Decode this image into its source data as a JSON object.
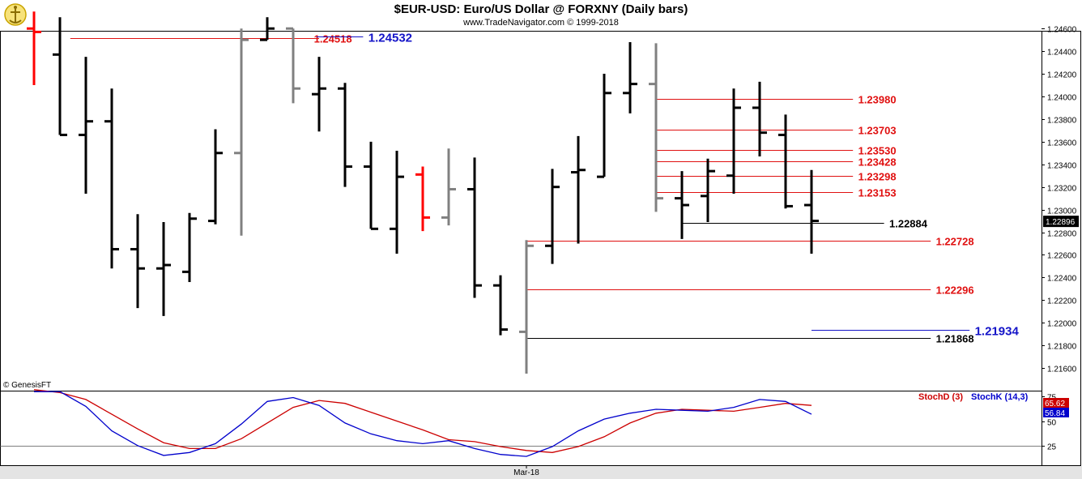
{
  "header": {
    "title": "$EUR-USD:  Euro/US Dollar @ FORXNY  (Daily bars)",
    "subtitle": "www.TradeNavigator.com © 1999-2018",
    "logo_icon": "tradenavigator-logo-icon"
  },
  "copyright": "© GenesisFT",
  "colors": {
    "up_bar": "#000000",
    "down_bar": "#ff0000",
    "gray_bar": "#808080",
    "red_level": "#e01010",
    "blue_level": "#1414c8",
    "black_level": "#000000",
    "stoch_d": "#cc0000",
    "stoch_k": "#0000cc"
  },
  "chart_data": [
    {
      "type": "ohlc",
      "title": "$EUR-USD:  Euro/US Dollar @ FORXNY  (Daily bars)",
      "ylim": [
        1.214,
        1.2458
      ],
      "ytick_labels": [
        "1.24600",
        "1.24400",
        "1.24200",
        "1.24000",
        "1.23800",
        "1.23600",
        "1.23400",
        "1.23200",
        "1.23000",
        "1.22800",
        "1.22600",
        "1.22400",
        "1.22200",
        "1.22000",
        "1.21800",
        "1.21600"
      ],
      "ytick_values": [
        1.246,
        1.244,
        1.242,
        1.24,
        1.238,
        1.236,
        1.234,
        1.232,
        1.23,
        1.228,
        1.226,
        1.224,
        1.222,
        1.22,
        1.218,
        1.216
      ],
      "xtick_label": "Mar-18",
      "last_price": "1.22896",
      "bars": [
        {
          "o": 1.246,
          "h": 1.2475,
          "l": 1.241,
          "c": 1.2457,
          "color": "red"
        },
        {
          "o": 1.2437,
          "h": 1.247,
          "l": 1.2366,
          "c": 1.2366,
          "color": "black"
        },
        {
          "o": 1.2366,
          "h": 1.2435,
          "l": 1.2314,
          "c": 1.2378,
          "color": "black"
        },
        {
          "o": 1.2378,
          "h": 1.2407,
          "l": 1.2248,
          "c": 1.2265,
          "color": "black"
        },
        {
          "o": 1.2265,
          "h": 1.2296,
          "l": 1.2213,
          "c": 1.2248,
          "color": "black"
        },
        {
          "o": 1.2248,
          "h": 1.2289,
          "l": 1.2206,
          "c": 1.2251,
          "color": "black"
        },
        {
          "o": 1.2245,
          "h": 1.2297,
          "l": 1.2236,
          "c": 1.2292,
          "color": "black"
        },
        {
          "o": 1.229,
          "h": 1.2371,
          "l": 1.2287,
          "c": 1.235,
          "color": "black"
        },
        {
          "o": 1.235,
          "h": 1.246,
          "l": 1.2277,
          "c": 1.245,
          "color": "gray"
        },
        {
          "o": 1.245,
          "h": 1.247,
          "l": 1.245,
          "c": 1.246,
          "color": "black"
        },
        {
          "o": 1.246,
          "h": 1.246,
          "l": 1.2394,
          "c": 1.2407,
          "color": "gray"
        },
        {
          "o": 1.2402,
          "h": 1.2435,
          "l": 1.2369,
          "c": 1.2407,
          "color": "black"
        },
        {
          "o": 1.2407,
          "h": 1.2412,
          "l": 1.232,
          "c": 1.2338,
          "color": "black"
        },
        {
          "o": 1.2338,
          "h": 1.236,
          "l": 1.2283,
          "c": 1.2283,
          "color": "black"
        },
        {
          "o": 1.2283,
          "h": 1.2352,
          "l": 1.2261,
          "c": 1.2329,
          "color": "black"
        },
        {
          "o": 1.2331,
          "h": 1.2338,
          "l": 1.2281,
          "c": 1.2293,
          "color": "red"
        },
        {
          "o": 1.2293,
          "h": 1.2354,
          "l": 1.2286,
          "c": 1.2318,
          "color": "gray"
        },
        {
          "o": 1.2318,
          "h": 1.2346,
          "l": 1.2222,
          "c": 1.2233,
          "color": "black"
        },
        {
          "o": 1.2233,
          "h": 1.2242,
          "l": 1.2189,
          "c": 1.2194,
          "color": "black"
        },
        {
          "o": 1.2192,
          "h": 1.2273,
          "l": 1.2155,
          "c": 1.2268,
          "color": "gray"
        },
        {
          "o": 1.2268,
          "h": 1.2336,
          "l": 1.2252,
          "c": 1.232,
          "color": "black"
        },
        {
          "o": 1.2333,
          "h": 1.2365,
          "l": 1.227,
          "c": 1.2335,
          "color": "black"
        },
        {
          "o": 1.2329,
          "h": 1.242,
          "l": 1.2329,
          "c": 1.2403,
          "color": "black"
        },
        {
          "o": 1.2403,
          "h": 1.2448,
          "l": 1.2385,
          "c": 1.2411,
          "color": "black"
        },
        {
          "o": 1.2411,
          "h": 1.2447,
          "l": 1.2298,
          "c": 1.231,
          "color": "gray"
        },
        {
          "o": 1.231,
          "h": 1.2334,
          "l": 1.2274,
          "c": 1.2304,
          "color": "black"
        },
        {
          "o": 1.2312,
          "h": 1.2345,
          "l": 1.2289,
          "c": 1.2334,
          "color": "black"
        },
        {
          "o": 1.233,
          "h": 1.2407,
          "l": 1.2314,
          "c": 1.239,
          "color": "black"
        },
        {
          "o": 1.239,
          "h": 1.2413,
          "l": 1.2347,
          "c": 1.2368,
          "color": "black"
        },
        {
          "o": 1.2366,
          "h": 1.2384,
          "l": 1.2301,
          "c": 1.2303,
          "color": "black"
        },
        {
          "o": 1.2304,
          "h": 1.2335,
          "l": 1.2261,
          "c": 1.229,
          "color": "black"
        }
      ],
      "levels": [
        {
          "value": 1.24518,
          "label": "1.24518",
          "color": "red",
          "x_start": 1.4,
          "x_end": 11.0,
          "label_x": 10.8
        },
        {
          "value": 1.24532,
          "label": "1.24532",
          "color": "blue",
          "x_start": 10.9,
          "x_end": 12.7,
          "label_x": 12.9
        },
        {
          "value": 1.2398,
          "label": "1.23980",
          "color": "red",
          "x_start": 24.0,
          "x_end": 31.6,
          "label_x": 31.8
        },
        {
          "value": 1.23703,
          "label": "1.23703",
          "color": "red",
          "x_start": 24.0,
          "x_end": 31.6,
          "label_x": 31.8
        },
        {
          "value": 1.2353,
          "label": "1.23530",
          "color": "red",
          "x_start": 24.0,
          "x_end": 31.6,
          "label_x": 31.8
        },
        {
          "value": 1.23428,
          "label": "1.23428",
          "color": "red",
          "x_start": 24.0,
          "x_end": 31.6,
          "label_x": 31.8
        },
        {
          "value": 1.23298,
          "label": "1.23298",
          "color": "red",
          "x_start": 24.0,
          "x_end": 31.6,
          "label_x": 31.8
        },
        {
          "value": 1.23153,
          "label": "1.23153",
          "color": "red",
          "x_start": 24.0,
          "x_end": 31.6,
          "label_x": 31.8
        },
        {
          "value": 1.22884,
          "label": "1.22884",
          "color": "black",
          "x_start": 25.0,
          "x_end": 32.8,
          "label_x": 33.0
        },
        {
          "value": 1.22728,
          "label": "1.22728",
          "color": "red",
          "x_start": 19.0,
          "x_end": 34.6,
          "label_x": 34.8
        },
        {
          "value": 1.22296,
          "label": "1.22296",
          "color": "red",
          "x_start": 19.0,
          "x_end": 34.6,
          "label_x": 34.8
        },
        {
          "value": 1.21934,
          "label": "1.21934",
          "color": "blue",
          "x_start": 30.0,
          "x_end": 36.1,
          "label_x": 36.3
        },
        {
          "value": 1.21868,
          "label": "1.21868",
          "color": "black",
          "x_start": 19.0,
          "x_end": 34.6,
          "label_x": 34.8
        }
      ]
    },
    {
      "type": "line",
      "title": "Stochastics",
      "ylim": [
        5,
        81
      ],
      "ytick_labels": [
        "75",
        "25",
        "50"
      ],
      "ytick_values": [
        75,
        25,
        50
      ],
      "legend": [
        "StochD (3)",
        "StochK (14,3)"
      ],
      "readouts": [
        {
          "label": "65.62",
          "color": "red"
        },
        {
          "label": "56.84",
          "color": "blue"
        }
      ],
      "series": [
        {
          "name": "StochD (3)",
          "color": "red",
          "x": [
            0,
            1,
            2,
            3,
            4,
            5,
            6,
            7,
            8,
            9,
            10,
            11,
            12,
            13,
            14,
            15,
            16,
            17,
            18,
            19,
            20,
            21,
            22,
            23,
            24,
            25,
            26,
            27,
            28,
            29,
            30
          ],
          "values": [
            82,
            79,
            72,
            57,
            42,
            28,
            22,
            22,
            32,
            48,
            64,
            71,
            68,
            59,
            50,
            41,
            31,
            29,
            24,
            20,
            18,
            24,
            34,
            48,
            58,
            62,
            61,
            60,
            64,
            68,
            66
          ]
        },
        {
          "name": "StochK (14,3)",
          "color": "blue",
          "x": [
            0,
            1,
            2,
            3,
            4,
            5,
            6,
            7,
            8,
            9,
            10,
            11,
            12,
            13,
            14,
            15,
            16,
            17,
            18,
            19,
            20,
            21,
            22,
            23,
            24,
            25,
            26,
            27,
            28,
            29,
            30
          ],
          "values": [
            80,
            80,
            65,
            40,
            25,
            15,
            18,
            27,
            47,
            70,
            74,
            66,
            48,
            37,
            30,
            27,
            30,
            22,
            16,
            14,
            24,
            40,
            52,
            58,
            62,
            61,
            60,
            64,
            72,
            70,
            57
          ]
        }
      ]
    }
  ]
}
